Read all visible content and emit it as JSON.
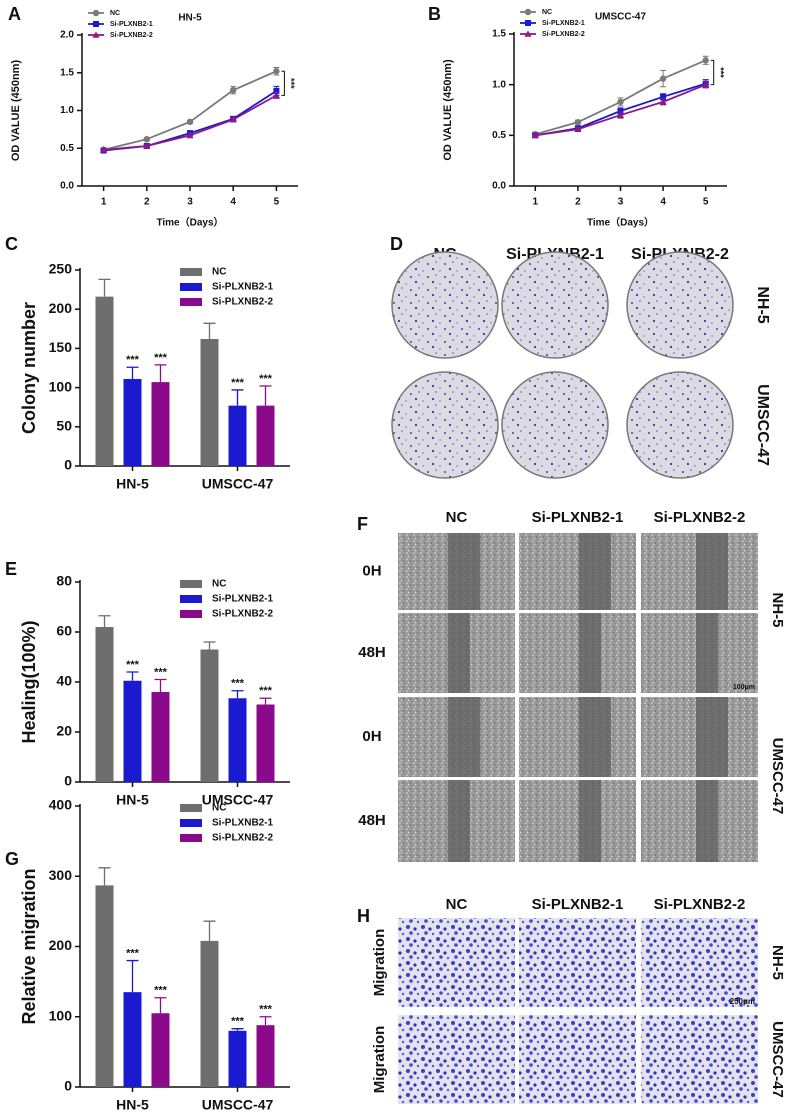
{
  "chart_data": [
    {
      "type": "line",
      "panel_label": "A",
      "title": "HN-5",
      "x_label": "Time（Days）",
      "y_label": "OD VALUE (450nm)",
      "x": [
        1,
        2,
        3,
        4,
        5
      ],
      "xlim": [
        0.5,
        5.5
      ],
      "xticks": [
        1,
        2,
        3,
        4,
        5
      ],
      "ylim": [
        0,
        2
      ],
      "yticks": [
        {
          "value": 0,
          "label": "0.0"
        },
        0.5,
        {
          "value": 1,
          "label": "1.0"
        },
        1.5,
        {
          "value": 2,
          "label": "2.0"
        }
      ],
      "series": [
        {
          "name": "NC",
          "color": "#7a7a7a",
          "marker": "circle",
          "values": [
            0.48,
            0.62,
            0.85,
            1.27,
            1.52
          ],
          "errors": [
            0.02,
            0.02,
            0.02,
            0.05,
            0.05
          ]
        },
        {
          "name": "Si-PLXNB2-1",
          "color": "#1a1ad0",
          "marker": "square",
          "values": [
            0.47,
            0.53,
            0.7,
            0.89,
            1.26
          ],
          "errors": [
            0.02,
            0.02,
            0.03,
            0.03,
            0.06
          ]
        },
        {
          "name": "Si-PLXNB2-2",
          "color": "#8b1a8b",
          "marker": "triangle",
          "values": [
            0.48,
            0.53,
            0.67,
            0.88,
            1.2
          ],
          "errors": [
            0.02,
            0.02,
            0.03,
            0.03,
            0.04
          ]
        }
      ],
      "annotation": "***"
    },
    {
      "type": "line",
      "panel_label": "B",
      "title": "UMSCC-47",
      "x_label": "Time（Days）",
      "y_label": "OD VALUE (450nm)",
      "x": [
        1,
        2,
        3,
        4,
        5
      ],
      "xlim": [
        0.5,
        5.5
      ],
      "xticks": [
        1,
        2,
        3,
        4,
        5
      ],
      "ylim": [
        0,
        1.5
      ],
      "yticks": [
        {
          "value": 0,
          "label": "0.0"
        },
        0.5,
        {
          "value": 1,
          "label": "1.0"
        },
        1.5
      ],
      "series": [
        {
          "name": "NC",
          "color": "#7a7a7a",
          "marker": "circle",
          "values": [
            0.51,
            0.63,
            0.83,
            1.06,
            1.24
          ],
          "errors": [
            0.02,
            0.02,
            0.04,
            0.08,
            0.04
          ]
        },
        {
          "name": "Si-PLXNB2-1",
          "color": "#1a1ad0",
          "marker": "square",
          "values": [
            0.5,
            0.57,
            0.74,
            0.88,
            1.01
          ],
          "errors": [
            0.02,
            0.02,
            0.03,
            0.03,
            0.04
          ]
        },
        {
          "name": "Si-PLXNB2-2",
          "color": "#8b1a8b",
          "marker": "triangle",
          "values": [
            0.5,
            0.56,
            0.7,
            0.83,
            1.0
          ],
          "errors": [
            0.02,
            0.02,
            0.03,
            0.03,
            0.03
          ]
        }
      ],
      "annotation": "***"
    },
    {
      "type": "bar",
      "panel_label": "C",
      "y_label": "Colony number",
      "categories": [
        "HN-5",
        "UMSCC-47"
      ],
      "ylim": [
        0,
        250
      ],
      "yticks": [
        0,
        50,
        100,
        150,
        200,
        250
      ],
      "series": [
        {
          "name": "NC",
          "color": "#6e6e6e",
          "values": [
            216,
            162
          ],
          "errors": [
            22,
            20
          ]
        },
        {
          "name": "Si-PLXNB2-1",
          "color": "#1a1ad0",
          "values": [
            111,
            77
          ],
          "errors": [
            15,
            20
          ],
          "annotations": [
            "***",
            "***"
          ]
        },
        {
          "name": "Si-PLXNB2-2",
          "color": "#8b0a8b",
          "values": [
            107,
            77
          ],
          "errors": [
            22,
            25
          ],
          "annotations": [
            "***",
            "***"
          ]
        }
      ]
    },
    {
      "type": "bar",
      "panel_label": "E",
      "y_label": "Healing(100%)",
      "categories": [
        "HN-5",
        "UMSCC-47"
      ],
      "ylim": [
        0,
        80
      ],
      "yticks": [
        0,
        20,
        40,
        60,
        80
      ],
      "series": [
        {
          "name": "NC",
          "color": "#6e6e6e",
          "values": [
            62,
            53
          ],
          "errors": [
            4.5,
            3
          ]
        },
        {
          "name": "Si-PLXNB2-1",
          "color": "#1a1ad0",
          "values": [
            40.5,
            33.5
          ],
          "errors": [
            3.5,
            3
          ],
          "annotations": [
            "***",
            "***"
          ]
        },
        {
          "name": "Si-PLXNB2-2",
          "color": "#8b0a8b",
          "values": [
            36,
            31
          ],
          "errors": [
            5,
            2.5
          ],
          "annotations": [
            "***",
            "***"
          ]
        }
      ]
    },
    {
      "type": "bar",
      "panel_label": "G",
      "y_label": "Relative migration",
      "categories": [
        "HN-5",
        "UMSCC-47"
      ],
      "ylim": [
        0,
        400
      ],
      "yticks": [
        0,
        100,
        200,
        300,
        400
      ],
      "series": [
        {
          "name": "NC",
          "color": "#6e6e6e",
          "values": [
            287,
            208
          ],
          "errors": [
            25,
            28
          ]
        },
        {
          "name": "Si-PLXNB2-1",
          "color": "#1a1ad0",
          "values": [
            135,
            80
          ],
          "errors": [
            45,
            3
          ],
          "annotations": [
            "***",
            "***"
          ]
        },
        {
          "name": "Si-PLXNB2-2",
          "color": "#8b0a8b",
          "values": [
            105,
            88
          ],
          "errors": [
            22,
            12
          ],
          "annotations": [
            "***",
            "***"
          ]
        }
      ]
    }
  ],
  "image_panels": [
    {
      "panel_label": "D",
      "columns": [
        "NC",
        "Si-PLXNB2-1",
        "Si-PLXNB2-2"
      ],
      "rows": [
        "NH-5",
        "UMSCC-47"
      ]
    },
    {
      "panel_label": "F",
      "columns": [
        "NC",
        "Si-PLXNB2-1",
        "Si-PLXNB2-2"
      ],
      "rows": [
        "NH-5",
        "UMSCC-47"
      ],
      "times": [
        "0H",
        "48H"
      ],
      "scale_bar": "100μm"
    },
    {
      "panel_label": "H",
      "columns": [
        "NC",
        "Si-PLXNB2-1",
        "Si-PLXNB2-2"
      ],
      "rows": [
        "NH-5",
        "UMSCC-47"
      ],
      "row_label": "Migration",
      "scale_bar": "250μm"
    }
  ]
}
